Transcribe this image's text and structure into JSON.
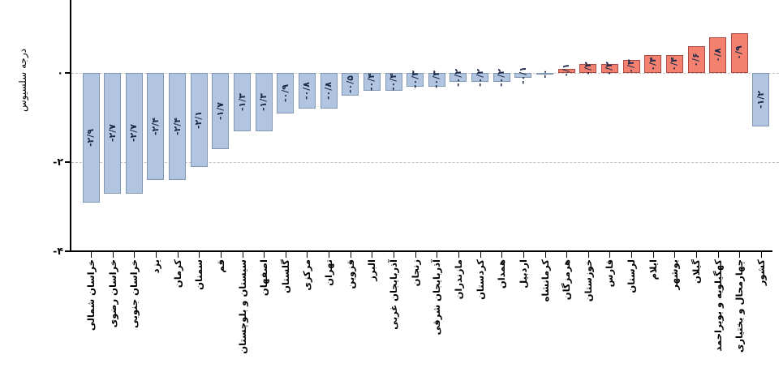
{
  "chart_data": {
    "type": "bar",
    "title": "",
    "xlabel": "",
    "ylabel": "درجه سلسیوس",
    "ylim": [
      -4,
      1.6
    ],
    "grid": "dashed horizontal gridlines at 0 and -2, legend none",
    "yticks": [
      {
        "label": "۰",
        "value": 0
      },
      {
        "label": "-۲",
        "value": -2
      },
      {
        "label": "-۴",
        "value": -4
      }
    ],
    "categories": [
      "خراسان شمالی",
      "خراسان رضوی",
      "خراسان جنوبی",
      "یزد",
      "کرمان",
      "سمنان",
      "قم",
      "سیستان و بلوچستان",
      "اصفهان",
      "گلستان",
      "مرکزی",
      "تهران",
      "قزوین",
      "البرز",
      "آذربایجان غربی",
      "زنجان",
      "آذربایجان شرقی",
      "مازندران",
      "کردستان",
      "همدان",
      "اردبیل",
      "کرمانشاه",
      "هرمزگان",
      "خوزستان",
      "فارس",
      "لرستان",
      "ایلام",
      "بوشهر",
      "گیلان",
      "کهگیلویه و بویراحمد",
      "چهارمحال و بختیاری",
      "کشور"
    ],
    "values": [
      -2.9,
      -2.7,
      -2.7,
      -2.4,
      -2.4,
      -2.1,
      -1.7,
      -1.3,
      -1.3,
      -0.9,
      -0.8,
      -0.8,
      -0.5,
      -0.4,
      -0.4,
      -0.3,
      -0.3,
      -0.2,
      -0.2,
      -0.2,
      -0.1,
      -0.0,
      0.1,
      0.2,
      0.2,
      0.3,
      0.4,
      0.4,
      0.6,
      0.8,
      0.9,
      -1.2
    ],
    "bar_labels": [
      "-۲/۹",
      "-۲/۷",
      "-۲/۷",
      "-۲/۴",
      "-۲/۴",
      "-۲/۱",
      "-۱/۷",
      "-۱/۳",
      "-۱/۳",
      "-۰/۹",
      "-۰/۸",
      "-۰/۸",
      "-۰/۵",
      "-۰/۴",
      "-۰/۴",
      "-۰/۳",
      "-۰/۳",
      "-۰/۲",
      "-۰/۲",
      "-۰/۲",
      "-۰/۱",
      "-۰",
      "۰/۱",
      "۰/۲",
      "۰/۲",
      "۰/۳",
      "۰/۴",
      "۰/۴",
      "۰/۶",
      "۰/۸",
      "۰/۹",
      "-۱/۲"
    ],
    "colors": {
      "negative_fill": "#b2c5e0",
      "negative_border": "#8298b2",
      "positive_fill": "#f4816f",
      "positive_border": "#a84b42",
      "value_label_text": "#1b2a4a",
      "gridline": "#c3c3c3",
      "axis": "#000000"
    }
  }
}
